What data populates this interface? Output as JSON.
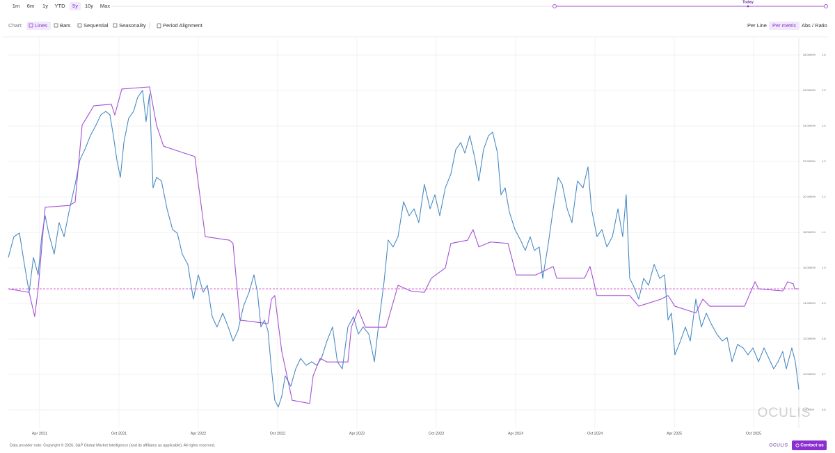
{
  "toolbar": {
    "ranges": [
      "1m",
      "6m",
      "1y",
      "YTD",
      "5y",
      "10y",
      "Max"
    ],
    "active_range": 4,
    "slider_label": "Today",
    "chart_label": "Chart:",
    "chart_modes": [
      "Lines",
      "Bars",
      "Sequential",
      "Seasonality"
    ],
    "active_mode": 0,
    "period_alignment": "Period Alignment",
    "scales": [
      "Per Line",
      "Per metric",
      "Abs / Ratio"
    ],
    "active_scale": 1
  },
  "chart": {
    "type": "line",
    "xlim": [
      2021.053,
      2026.035
    ],
    "xticks": [
      {
        "value": 2021.25,
        "label": "Apr 2021"
      },
      {
        "value": 2021.75,
        "label": "Oct 2021"
      },
      {
        "value": 2022.25,
        "label": "Apr 2022"
      },
      {
        "value": 2022.75,
        "label": "Oct 2022"
      },
      {
        "value": 2023.25,
        "label": "Apr 2023"
      },
      {
        "value": 2023.75,
        "label": "Oct 2023"
      },
      {
        "value": 2024.25,
        "label": "Apr 2024"
      },
      {
        "value": 2024.75,
        "label": "Oct 2024"
      },
      {
        "value": 2025.25,
        "label": "Apr 2025"
      },
      {
        "value": 2025.75,
        "label": "Oct 2025"
      }
    ],
    "ylim": [
      6.98,
      28.94
    ],
    "yticks": [
      {
        "value": 8,
        "label": "8.0000%"
      },
      {
        "value": 10,
        "label": "10.0000%"
      },
      {
        "value": 12,
        "label": "12.0000%"
      },
      {
        "value": 14,
        "label": "14.0000%"
      },
      {
        "value": 16,
        "label": "16.0000%"
      },
      {
        "value": 18,
        "label": "18.0000%"
      },
      {
        "value": 20,
        "label": "20.0000%"
      },
      {
        "value": 22,
        "label": "22.0000%"
      },
      {
        "value": 24,
        "label": "24.0000%"
      },
      {
        "value": 26,
        "label": "26.0000%"
      },
      {
        "value": 28,
        "label": "28.0000%"
      }
    ],
    "y2lim": [
      0.549,
      1.647
    ],
    "y2ticks": [
      0.6,
      0.7,
      0.8,
      0.9,
      {
        "value": 1,
        "label": "1.0"
      },
      1.1,
      1.2,
      1.3,
      1.4,
      1.5,
      1.6
    ],
    "grid": true,
    "reference_line": {
      "value": 14.82,
      "axis": "y",
      "color": "#d63fc8"
    },
    "series": [
      {
        "color": "#4a8bc4",
        "axis": "y",
        "x": [
          2021.053,
          2021.088,
          2021.123,
          2021.154,
          2021.184,
          2021.211,
          2021.241,
          2021.263,
          2021.285,
          2021.307,
          2021.342,
          2021.373,
          2021.404,
          2021.439,
          2021.474,
          2021.504,
          2021.535,
          2021.57,
          2021.605,
          2021.636,
          2021.667,
          2021.693,
          2021.715,
          2021.737,
          2021.759,
          2021.781,
          2021.811,
          2021.842,
          2021.868,
          2021.899,
          2021.921,
          2021.943,
          2021.965,
          2021.987,
          2022.018,
          2022.053,
          2022.088,
          2022.118,
          2022.149,
          2022.184,
          2022.219,
          2022.25,
          2022.281,
          2022.307,
          2022.338,
          2022.368,
          2022.404,
          2022.439,
          2022.469,
          2022.5,
          2022.535,
          2022.57,
          2022.601,
          2022.623,
          2022.645,
          2022.667,
          2022.689,
          2022.711,
          2022.732,
          2022.754,
          2022.776,
          2022.798,
          2022.833,
          2022.864,
          2022.895,
          2022.93,
          2022.965,
          2022.996,
          2023.026,
          2023.061,
          2023.096,
          2023.127,
          2023.158,
          2023.193,
          2023.228,
          2023.259,
          2023.289,
          2023.325,
          2023.36,
          2023.39,
          2023.421,
          2023.447,
          2023.478,
          2023.509,
          2023.544,
          2023.579,
          2023.61,
          2023.64,
          2023.675,
          2023.711,
          2023.741,
          2023.772,
          2023.807,
          2023.842,
          2023.873,
          2023.904,
          2023.93,
          2023.961,
          2023.991,
          2024.018,
          2024.048,
          2024.079,
          2024.105,
          2024.136,
          2024.158,
          2024.184,
          2024.211,
          2024.246,
          2024.281,
          2024.311,
          2024.342,
          2024.368,
          2024.399,
          2024.421,
          2024.456,
          2024.487,
          2024.518,
          2024.544,
          2024.575,
          2024.605,
          2024.64,
          2024.675,
          2024.706,
          2024.728,
          2024.763,
          2024.794,
          2024.825,
          2024.86,
          2024.895,
          2024.925,
          2024.947,
          2024.969,
          2024.991,
          2025.026,
          2025.057,
          2025.088,
          2025.123,
          2025.158,
          2025.189,
          2025.211,
          2025.232,
          2025.254,
          2025.289,
          2025.32,
          2025.351,
          2025.386,
          2025.421,
          2025.452,
          2025.482,
          2025.518,
          2025.553,
          2025.583,
          2025.614,
          2025.649,
          2025.684,
          2025.715,
          2025.746,
          2025.781,
          2025.816,
          2025.846,
          2025.877,
          2025.904,
          2025.934,
          2025.956,
          2025.991,
          2026.013,
          2026.035
        ],
        "values": [
          16.59,
          17.76,
          17.96,
          16.2,
          14.63,
          16.59,
          15.61,
          17.76,
          18.94,
          17.96,
          16.78,
          18.55,
          17.76,
          19.33,
          20.71,
          22.08,
          22.67,
          23.45,
          24.04,
          24.63,
          24.82,
          24.63,
          23.45,
          22.08,
          21.1,
          23.06,
          24.43,
          24.82,
          25.61,
          26.0,
          24.24,
          25.8,
          20.51,
          21.1,
          20.9,
          19.33,
          18.16,
          17.96,
          16.78,
          16.2,
          14.24,
          15.61,
          14.63,
          15.02,
          13.25,
          12.67,
          13.45,
          12.67,
          11.88,
          12.47,
          13.84,
          14.63,
          15.61,
          14.63,
          12.67,
          13.06,
          12.47,
          10.31,
          8.55,
          8.16,
          8.75,
          9.92,
          9.33,
          10.31,
          10.9,
          10.51,
          10.71,
          10.51,
          10.9,
          11.88,
          12.67,
          10.71,
          10.31,
          12.67,
          13.25,
          12.27,
          12.67,
          12.27,
          10.71,
          13.06,
          15.22,
          17.57,
          17.18,
          17.76,
          19.73,
          18.94,
          19.33,
          18.55,
          20.71,
          19.33,
          20.12,
          18.94,
          20.51,
          21.29,
          22.67,
          23.06,
          22.47,
          23.45,
          22.27,
          20.9,
          22.67,
          23.45,
          23.65,
          22.47,
          20.12,
          20.51,
          19.14,
          18.16,
          17.57,
          16.98,
          17.76,
          16.98,
          17.18,
          15.41,
          17.37,
          19.33,
          21.1,
          20.71,
          19.33,
          18.55,
          20.9,
          20.51,
          21.69,
          19.33,
          17.76,
          18.16,
          17.18,
          17.76,
          19.33,
          17.76,
          20.12,
          15.41,
          15.02,
          14.24,
          15.41,
          15.02,
          16.2,
          15.41,
          15.61,
          13.06,
          13.45,
          11.1,
          11.88,
          12.67,
          11.88,
          14.24,
          12.67,
          13.45,
          12.86,
          12.27,
          11.88,
          12.08,
          10.71,
          11.69,
          11.49,
          11.1,
          11.49,
          10.71,
          11.49,
          10.9,
          10.31,
          10.71,
          11.29,
          10.31,
          11.49,
          10.71,
          9.14
        ]
      },
      {
        "color": "#a450d4",
        "axis": "y2",
        "x": [
          2021.053,
          2021.132,
          2021.184,
          2021.219,
          2021.241,
          2021.285,
          2021.439,
          2021.474,
          2021.518,
          2021.592,
          2021.702,
          2021.724,
          2021.768,
          2021.943,
          2021.987,
          2022.031,
          2022.184,
          2022.228,
          2022.294,
          2022.447,
          2022.469,
          2022.513,
          2022.689,
          2022.711,
          2022.732,
          2022.776,
          2022.842,
          2022.952,
          2022.974,
          2023.018,
          2023.061,
          2023.193,
          2023.215,
          2023.259,
          2023.303,
          2023.434,
          2023.509,
          2023.588,
          2023.675,
          2023.719,
          2023.807,
          2023.842,
          2023.947,
          2023.982,
          2024.018,
          2024.092,
          2024.202,
          2024.254,
          2024.377,
          2024.487,
          2024.509,
          2024.684,
          2024.719,
          2024.763,
          2024.969,
          2025.026,
          2025.167,
          2025.211,
          2025.254,
          2025.386,
          2025.43,
          2025.474,
          2025.605,
          2025.693,
          2025.759,
          2025.781,
          2025.934,
          2025.965,
          2026.0,
          2026.009,
          2026.035
        ],
        "values": [
          0.941,
          0.935,
          0.931,
          0.863,
          0.941,
          1.171,
          1.176,
          1.186,
          1.402,
          1.457,
          1.461,
          1.431,
          1.504,
          1.51,
          1.402,
          1.343,
          1.32,
          1.314,
          1.088,
          1.078,
          1.069,
          0.853,
          0.843,
          0.912,
          0.922,
          0.765,
          0.627,
          0.618,
          0.696,
          0.745,
          0.735,
          0.735,
          0.833,
          0.882,
          0.833,
          0.833,
          0.951,
          0.935,
          0.931,
          0.971,
          1.0,
          1.069,
          1.078,
          1.108,
          1.059,
          1.073,
          1.069,
          0.98,
          0.98,
          1.004,
          0.971,
          0.971,
          1.004,
          0.922,
          0.922,
          0.892,
          0.912,
          0.922,
          0.892,
          0.873,
          0.912,
          0.892,
          0.892,
          0.892,
          0.961,
          0.941,
          0.935,
          0.961,
          0.955,
          0.941,
          0.941
        ]
      }
    ]
  },
  "watermark": "OCULIS",
  "footer": {
    "note": "Data provider note: Copyright © 2026, S&P Global Market Intelligence (and its affiliates as applicable). All rights reserved.",
    "brand": "OCULIS",
    "contact": "Contact us"
  }
}
